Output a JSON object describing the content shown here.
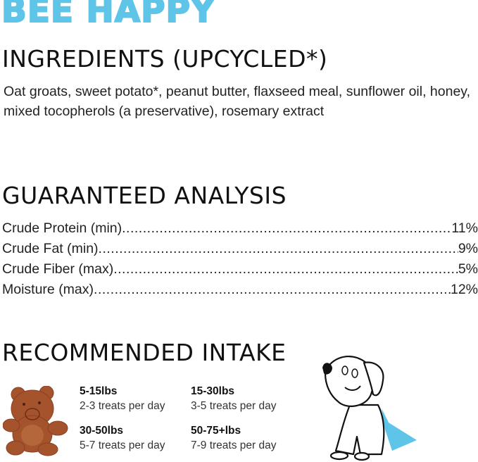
{
  "brand": {
    "title": "BEE HAPPY",
    "color": "#5ec4e8"
  },
  "ingredients": {
    "heading": "INGREDIENTS (UPCYCLED*)",
    "text": "Oat groats, sweet potato*, peanut butter, flaxseed meal, sunflower oil, honey, mixed tocopherols (a preservative), rosemary extract"
  },
  "analysis": {
    "heading": "GUARANTEED ANALYSIS",
    "rows": [
      {
        "label": "Crude Protein (min) ",
        "value": " 11%"
      },
      {
        "label": "Crude Fat (min)",
        "value": " 9%"
      },
      {
        "label": "Crude Fiber (max)",
        "value": " 5%"
      },
      {
        "label": "Moisture (max) ",
        "value": "12%"
      }
    ]
  },
  "intake": {
    "heading": "RECOMMENDED INTAKE",
    "items": [
      {
        "weight": "5-15lbs",
        "amount": "2-3 treats per day"
      },
      {
        "weight": "15-30lbs",
        "amount": "3-5 treats per day"
      },
      {
        "weight": "30-50lbs",
        "amount": "5-7 treats per day"
      },
      {
        "weight": "50-75+lbs",
        "amount": "7-9 treats per day"
      }
    ]
  },
  "images": {
    "treat": "bear-shaped-treat",
    "mascot": "dog-with-blue-cape"
  }
}
